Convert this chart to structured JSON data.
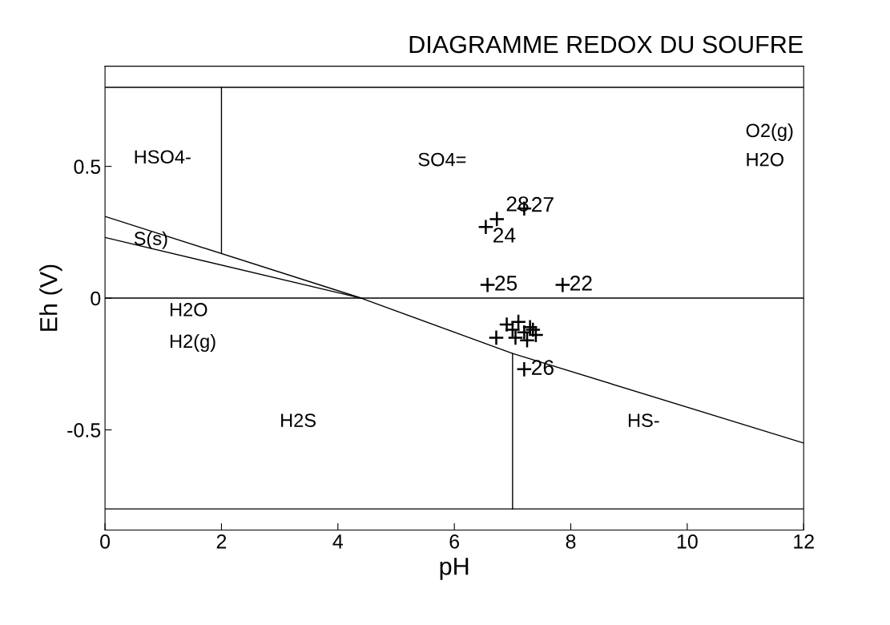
{
  "chart_data": {
    "type": "line",
    "title": "DIAGRAMME REDOX DU SOUFRE",
    "xlabel": "pH",
    "ylabel": "Eh (V)",
    "xlim": [
      0,
      12
    ],
    "xticks": [
      0,
      2,
      4,
      6,
      8,
      10,
      12
    ],
    "ylim": [
      -0.88,
      0.88
    ],
    "yticks": [
      -0.5,
      0,
      0.5
    ],
    "grid": false,
    "legend": false,
    "series": [
      {
        "color": "#000000",
        "x": [
          0,
          12
        ],
        "values": [
          0.8,
          0.8
        ]
      },
      {
        "color": "#000000",
        "x": [
          0,
          12
        ],
        "values": [
          -0.8,
          -0.8
        ]
      },
      {
        "color": "#000000",
        "x": [
          0,
          12
        ],
        "values": [
          0,
          0
        ]
      },
      {
        "color": "#000000",
        "x": [
          2,
          2
        ],
        "values": [
          0.8,
          0.17
        ]
      },
      {
        "color": "#000000",
        "x": [
          0,
          4.4
        ],
        "values": [
          0.31,
          0
        ]
      },
      {
        "color": "#000000",
        "x": [
          0,
          4.4,
          7,
          12
        ],
        "values": [
          0.23,
          0,
          -0.21,
          -0.55
        ]
      },
      {
        "color": "#000000",
        "x": [
          7,
          7
        ],
        "values": [
          -0.21,
          -0.8
        ]
      },
      {
        "type": "scatter",
        "color": "#000000",
        "marker": "cross",
        "x": [
          6.54,
          6.73,
          7.2,
          6.57,
          7.86,
          7.2,
          6.72,
          6.9,
          7.0,
          7.1,
          7.2,
          7.3,
          7.4,
          7.05,
          7.25,
          7.35
        ],
        "values": [
          0.27,
          0.3,
          0.34,
          0.05,
          0.05,
          -0.27,
          -0.15,
          -0.1,
          -0.12,
          -0.09,
          -0.13,
          -0.11,
          -0.14,
          -0.15,
          -0.16,
          -0.12
        ]
      }
    ],
    "annotations": [
      "HSO4-",
      "SO4=",
      "S(s)",
      "H2O",
      "H2(g)",
      "H2S",
      "HS-",
      "O2(g)",
      "H2O",
      {
        "text": "24",
        "x": 6.54,
        "y": 0.27
      },
      {
        "text": "28",
        "x": 6.73,
        "y": 0.3
      },
      {
        "text": "27",
        "x": 7.2,
        "y": 0.34
      },
      {
        "text": "25",
        "x": 6.57,
        "y": 0.05
      },
      {
        "text": "22",
        "x": 7.86,
        "y": 0.05
      },
      {
        "text": "26",
        "x": 7.2,
        "y": -0.27
      }
    ]
  }
}
